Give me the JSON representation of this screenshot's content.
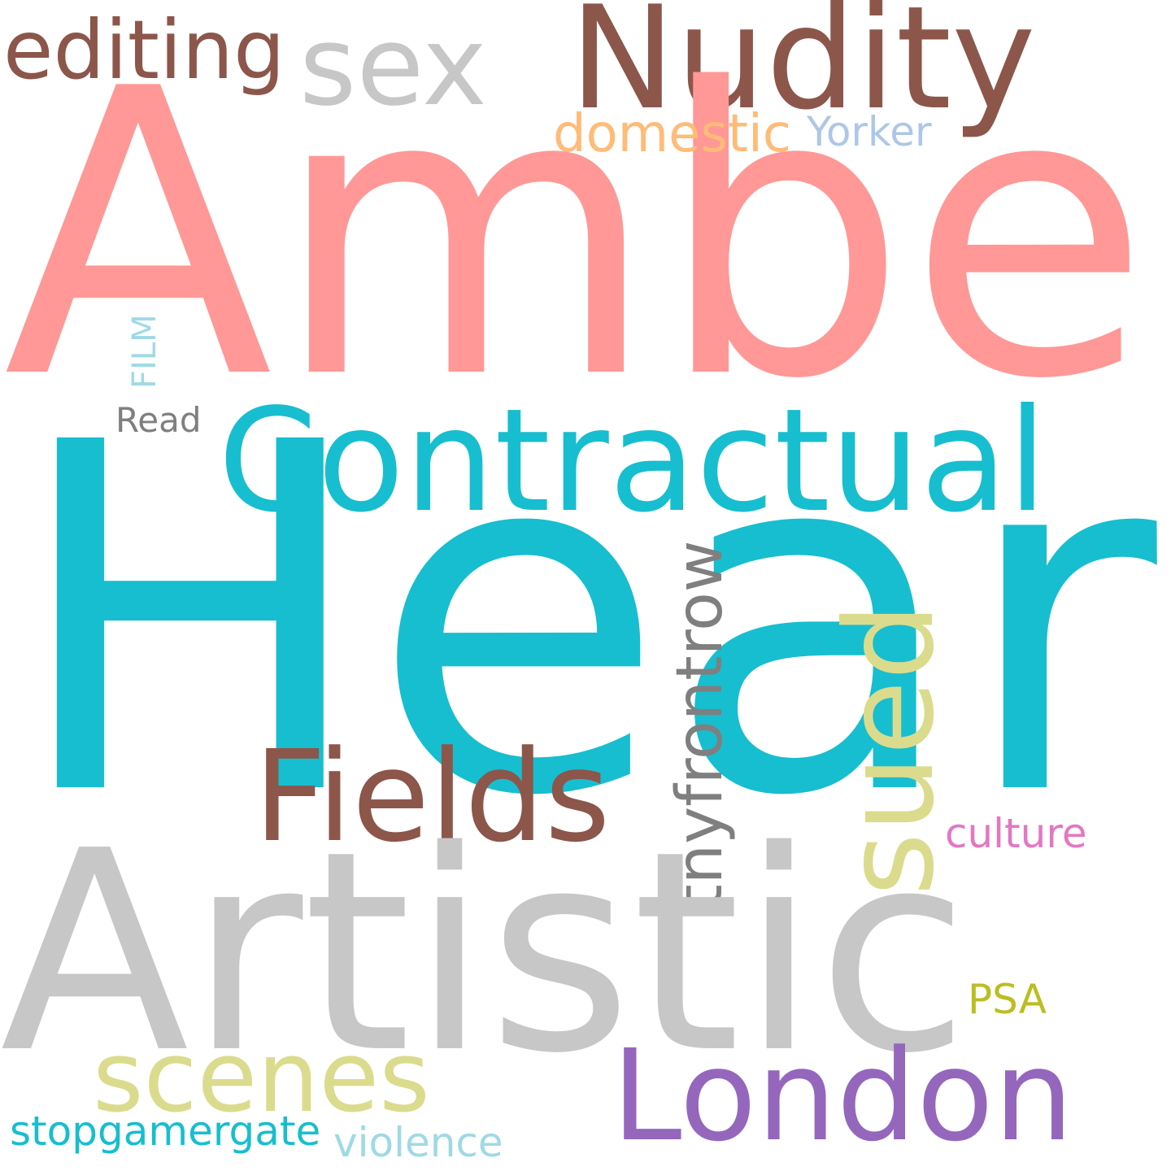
{
  "words": {
    "amber": {
      "text": "Amber",
      "color": "#ff9896"
    },
    "heard": {
      "text": "Heard",
      "color": "#17becf"
    },
    "artistic": {
      "text": "Artistic",
      "color": "#c7c7c7"
    },
    "contractual": {
      "text": "Contractual",
      "color": "#17becf"
    },
    "nudity": {
      "text": "Nudity",
      "color": "#8c564b"
    },
    "sex": {
      "text": "sex",
      "color": "#c7c7c7"
    },
    "editing": {
      "text": "editing",
      "color": "#8c564b"
    },
    "fields": {
      "text": "Fields",
      "color": "#8c564b"
    },
    "london": {
      "text": "London",
      "color": "#9467bd"
    },
    "scenes": {
      "text": "scenes",
      "color": "#dbdb8d"
    },
    "sued": {
      "text": "sued",
      "color": "#dbdb8d"
    },
    "tnyfrontrow": {
      "text": "tnyfrontrow",
      "color": "#7f7f7f"
    },
    "domestic": {
      "text": "domestic",
      "color": "#ffbb78"
    },
    "yorker": {
      "text": "Yorker",
      "color": "#aec7e8"
    },
    "culture": {
      "text": "culture",
      "color": "#e377c2"
    },
    "psa": {
      "text": "PSA",
      "color": "#bcbd22"
    },
    "stopgamergate": {
      "text": "stopgamergate",
      "color": "#17becf"
    },
    "violence": {
      "text": "violence",
      "color": "#9edae5"
    },
    "read": {
      "text": "Read",
      "color": "#7f7f7f"
    },
    "film": {
      "text": "FILM",
      "color": "#9edae5"
    }
  }
}
